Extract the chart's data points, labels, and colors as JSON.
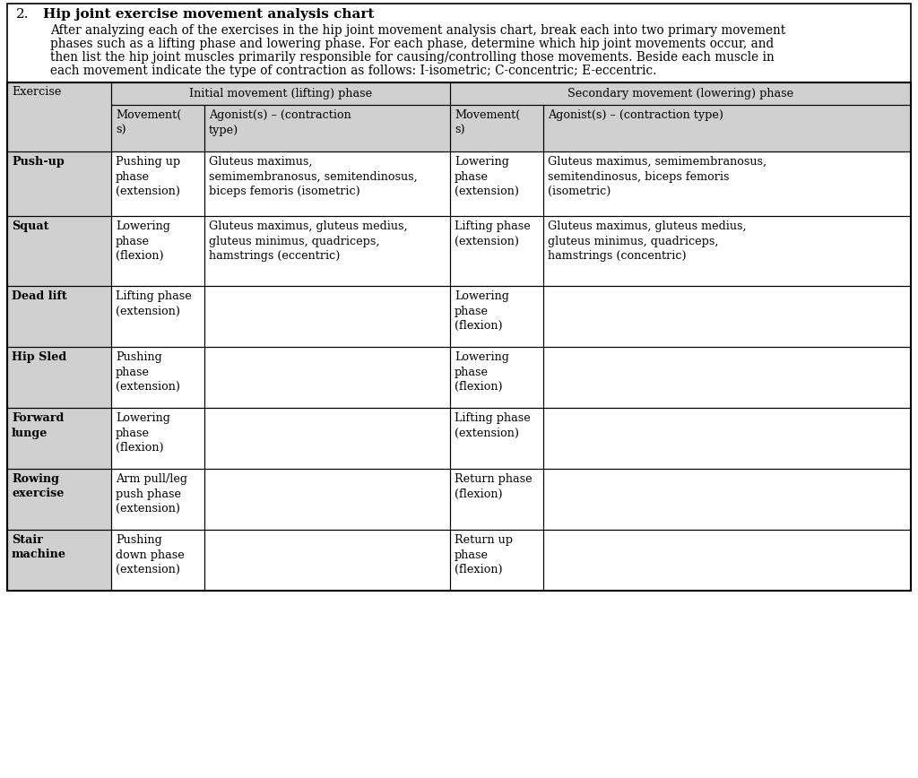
{
  "title_number": "2.",
  "title_bold": "Hip joint exercise movement analysis chart",
  "description_lines": [
    "After analyzing each of the exercises in the hip joint movement analysis chart, break each into two primary movement",
    "phases such as a lifting phase and lowering phase. For each phase, determine which hip joint movements occur, and",
    "then list the hip joint muscles primarily responsible for causing/controlling those movements. Beside each muscle in",
    "each movement indicate the type of contraction as follows: I-isometric; C-concentric; E-eccentric."
  ],
  "col_header_1": "Initial movement (lifting) phase",
  "col_header_2": "Secondary movement (lowering) phase",
  "header_bg": "#d0d0d0",
  "exercise_bg": "#d0d0d0",
  "data_bg": "#ffffff",
  "border_color": "#000000",
  "bg_color": "#ffffff",
  "font_family": "DejaVu Serif",
  "font_size_title": 11,
  "font_size_desc": 9.8,
  "font_size_table": 9.2,
  "rows": [
    {
      "exercise": "Push-up",
      "init_movement": "Pushing up\nphase\n(extension)",
      "init_agonist": "Gluteus maximus,\nsemimembranosus, semitendinosus,\nbiceps femoris (isometric)",
      "sec_movement": "Lowering\nphase\n(extension)",
      "sec_agonist": "Gluteus maximus, semimembranosus,\nsemitendinosus, biceps femoris\n(isometric)"
    },
    {
      "exercise": "Squat",
      "init_movement": "Lowering\nphase\n(flexion)",
      "init_agonist": "Gluteus maximus, gluteus medius,\ngluteus minimus, quadriceps,\nhamstrings (eccentric)",
      "sec_movement": "Lifting phase\n(extension)",
      "sec_agonist": "Gluteus maximus, gluteus medius,\ngluteus minimus, quadriceps,\nhamstrings (concentric)"
    },
    {
      "exercise": "Dead lift",
      "init_movement": "Lifting phase\n(extension)",
      "init_agonist": "",
      "sec_movement": "Lowering\nphase\n(flexion)",
      "sec_agonist": ""
    },
    {
      "exercise": "Hip Sled",
      "init_movement": "Pushing\nphase\n(extension)",
      "init_agonist": "",
      "sec_movement": "Lowering\nphase\n(flexion)",
      "sec_agonist": ""
    },
    {
      "exercise": "Forward\nlunge",
      "init_movement": "Lowering\nphase\n(flexion)",
      "init_agonist": "",
      "sec_movement": "Lifting phase\n(extension)",
      "sec_agonist": ""
    },
    {
      "exercise": "Rowing\nexercise",
      "init_movement": "Arm pull/leg\npush phase\n(extension)",
      "init_agonist": "",
      "sec_movement": "Return phase\n(flexion)",
      "sec_agonist": ""
    },
    {
      "exercise": "Stair\nmachine",
      "init_movement": "Pushing\ndown phase\n(extension)",
      "init_agonist": "",
      "sec_movement": "Return up\nphase\n(flexion)",
      "sec_agonist": ""
    }
  ]
}
